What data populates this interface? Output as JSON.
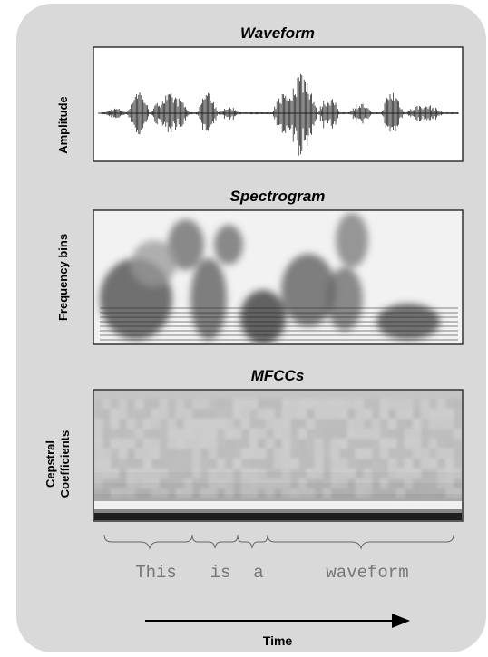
{
  "panels": [
    {
      "title": "Waveform",
      "ylabel": [
        "Amplitude"
      ]
    },
    {
      "title": "Spectrogram",
      "ylabel": [
        "Frequency bins"
      ]
    },
    {
      "title": "MFCCs",
      "ylabel": [
        "Cepstral",
        "Coefficients"
      ]
    }
  ],
  "words": [
    "This",
    "is",
    "a",
    "waveform"
  ],
  "time_label": "Time"
}
